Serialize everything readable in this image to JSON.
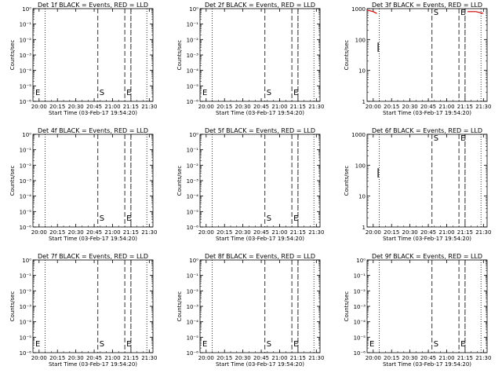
{
  "chart_data": [
    {
      "type": "line",
      "title": "Det 1f BLACK = Events, RED = LLD",
      "xlabel": "Start Time (03-Feb-17 19:54:20)",
      "ylabel": "Counts/sec",
      "yscale": "log",
      "xticks": [
        "20:00",
        "20:15",
        "20:30",
        "20:45",
        "21:00",
        "21:15",
        "21:30"
      ],
      "yticks": [
        "10⁻⁶",
        "10⁻⁵",
        "10⁻⁴",
        "10⁻³",
        "10⁻²",
        "10⁻¹",
        "10⁰"
      ],
      "dotted_lines": [
        "20:05",
        "21:15",
        "21:28"
      ],
      "dashed_lines": [
        "20:48",
        "21:10",
        "21:15"
      ],
      "markers": [
        "E",
        "S",
        "E"
      ],
      "series": []
    },
    {
      "type": "line",
      "title": "Det 2f BLACK = Events, RED = LLD",
      "xlabel": "Start Time (03-Feb-17 19:54:20)",
      "ylabel": "Counts/sec",
      "yscale": "log",
      "xticks": [
        "20:00",
        "20:15",
        "20:30",
        "20:45",
        "21:00",
        "21:15",
        "21:30"
      ],
      "yticks": [
        "10⁻⁶",
        "10⁻⁵",
        "10⁻⁴",
        "10⁻³",
        "10⁻²",
        "10⁻¹",
        "10⁰"
      ],
      "dotted_lines": [
        "20:05",
        "21:15",
        "21:28"
      ],
      "dashed_lines": [
        "20:48",
        "21:10",
        "21:15"
      ],
      "markers": [
        "E",
        "S",
        "E"
      ],
      "series": []
    },
    {
      "type": "line",
      "title": "Det 3f BLACK = Events, RED = LLD",
      "xlabel": "Start Time (03-Feb-17 19:54:20)",
      "ylabel": "Counts/sec",
      "yscale": "log",
      "xticks": [
        "20:00",
        "20:15",
        "20:30",
        "20:45",
        "21:00",
        "21:15",
        "21:30"
      ],
      "yticks": [
        "1",
        "10",
        "100",
        "1000"
      ],
      "dotted_lines": [
        "20:05",
        "21:15",
        "21:28"
      ],
      "dashed_lines": [
        "20:48",
        "21:10",
        "21:15"
      ],
      "markers": [
        "S",
        "E"
      ],
      "series": [
        {
          "color": "#cc0000",
          "points": [
            [
              "19:55",
              900
            ],
            [
              "20:00",
              800
            ],
            [
              "20:03",
              700
            ]
          ]
        },
        {
          "color": "#cc0000",
          "points": [
            [
              "21:17",
              800
            ],
            [
              "21:24",
              800
            ],
            [
              "21:30",
              700
            ]
          ]
        },
        {
          "color": "#000000",
          "points": [
            [
              "20:04",
              80
            ],
            [
              "20:04",
              40
            ]
          ]
        }
      ]
    },
    {
      "type": "line",
      "title": "Det 4f BLACK = Events, RED = LLD",
      "xlabel": "Start Time (03-Feb-17 19:54:20)",
      "ylabel": "Counts/sec",
      "yscale": "log",
      "xticks": [
        "20:00",
        "20:15",
        "20:30",
        "20:45",
        "21:00",
        "21:15",
        "21:30"
      ],
      "yticks": [
        "10⁻⁶",
        "10⁻⁵",
        "10⁻⁴",
        "10⁻³",
        "10⁻²",
        "10⁻¹",
        "10⁰"
      ],
      "dotted_lines": [
        "20:05",
        "21:15",
        "21:28"
      ],
      "dashed_lines": [
        "20:48",
        "21:10",
        "21:15"
      ],
      "markers": [
        "S",
        "E"
      ],
      "series": []
    },
    {
      "type": "line",
      "title": "Det 5f BLACK = Events, RED = LLD",
      "xlabel": "Start Time (03-Feb-17 19:54:20)",
      "ylabel": "Counts/sec",
      "yscale": "log",
      "xticks": [
        "20:00",
        "20:15",
        "20:30",
        "20:45",
        "21:00",
        "21:15",
        "21:30"
      ],
      "yticks": [
        "10⁻⁶",
        "10⁻⁵",
        "10⁻⁴",
        "10⁻³",
        "10⁻²",
        "10⁻¹",
        "10⁰"
      ],
      "dotted_lines": [
        "20:05",
        "21:15",
        "21:28"
      ],
      "dashed_lines": [
        "20:48",
        "21:10",
        "21:15"
      ],
      "markers": [
        "S",
        "E"
      ],
      "series": []
    },
    {
      "type": "line",
      "title": "Det 6f BLACK = Events, RED = LLD",
      "xlabel": "Start Time (03-Feb-17 19:54:20)",
      "ylabel": "Counts/sec",
      "yscale": "log",
      "xticks": [
        "20:00",
        "20:15",
        "20:30",
        "20:45",
        "21:00",
        "21:15",
        "21:30"
      ],
      "yticks": [
        "1",
        "10",
        "100",
        "1000"
      ],
      "dotted_lines": [
        "20:05",
        "21:15",
        "21:28"
      ],
      "dashed_lines": [
        "20:48",
        "21:10",
        "21:15"
      ],
      "markers": [
        "S",
        "E"
      ],
      "series": [
        {
          "color": "#000000",
          "points": [
            [
              "20:04",
              80
            ],
            [
              "20:04",
              40
            ]
          ]
        }
      ]
    },
    {
      "type": "line",
      "title": "Det 7f BLACK = Events, RED = LLD",
      "xlabel": "Start Time (03-Feb-17 19:54:20)",
      "ylabel": "Counts/sec",
      "yscale": "log",
      "xticks": [
        "20:00",
        "20:15",
        "20:30",
        "20:45",
        "21:00",
        "21:15",
        "21:30"
      ],
      "yticks": [
        "10⁻⁶",
        "10⁻⁵",
        "10⁻⁴",
        "10⁻³",
        "10⁻²",
        "10⁻¹",
        "10⁰"
      ],
      "dotted_lines": [
        "20:05",
        "21:15",
        "21:28"
      ],
      "dashed_lines": [
        "20:48",
        "21:10",
        "21:15"
      ],
      "markers": [
        "E",
        "S",
        "E"
      ],
      "series": []
    },
    {
      "type": "line",
      "title": "Det 8f BLACK = Events, RED = LLD",
      "xlabel": "Start Time (03-Feb-17 19:54:20)",
      "ylabel": "Counts/sec",
      "yscale": "log",
      "xticks": [
        "20:00",
        "20:15",
        "20:30",
        "20:45",
        "21:00",
        "21:15",
        "21:30"
      ],
      "yticks": [
        "10⁻⁶",
        "10⁻⁵",
        "10⁻⁴",
        "10⁻³",
        "10⁻²",
        "10⁻¹",
        "10⁰"
      ],
      "dotted_lines": [
        "20:05",
        "21:15",
        "21:28"
      ],
      "dashed_lines": [
        "20:48",
        "21:10",
        "21:15"
      ],
      "markers": [
        "E",
        "S",
        "E"
      ],
      "series": []
    },
    {
      "type": "line",
      "title": "Det 9f BLACK = Events, RED = LLD",
      "xlabel": "Start Time (03-Feb-17 19:54:20)",
      "ylabel": "Counts/sec",
      "yscale": "log",
      "xticks": [
        "20:00",
        "20:15",
        "20:30",
        "20:45",
        "21:00",
        "21:15",
        "21:30"
      ],
      "yticks": [
        "10⁻⁶",
        "10⁻⁵",
        "10⁻⁴",
        "10⁻³",
        "10⁻²",
        "10⁻¹",
        "10⁰"
      ],
      "dotted_lines": [
        "20:05",
        "21:15",
        "21:28"
      ],
      "dashed_lines": [
        "20:48",
        "21:10",
        "21:15"
      ],
      "markers": [
        "E",
        "S",
        "E"
      ],
      "series": []
    }
  ]
}
